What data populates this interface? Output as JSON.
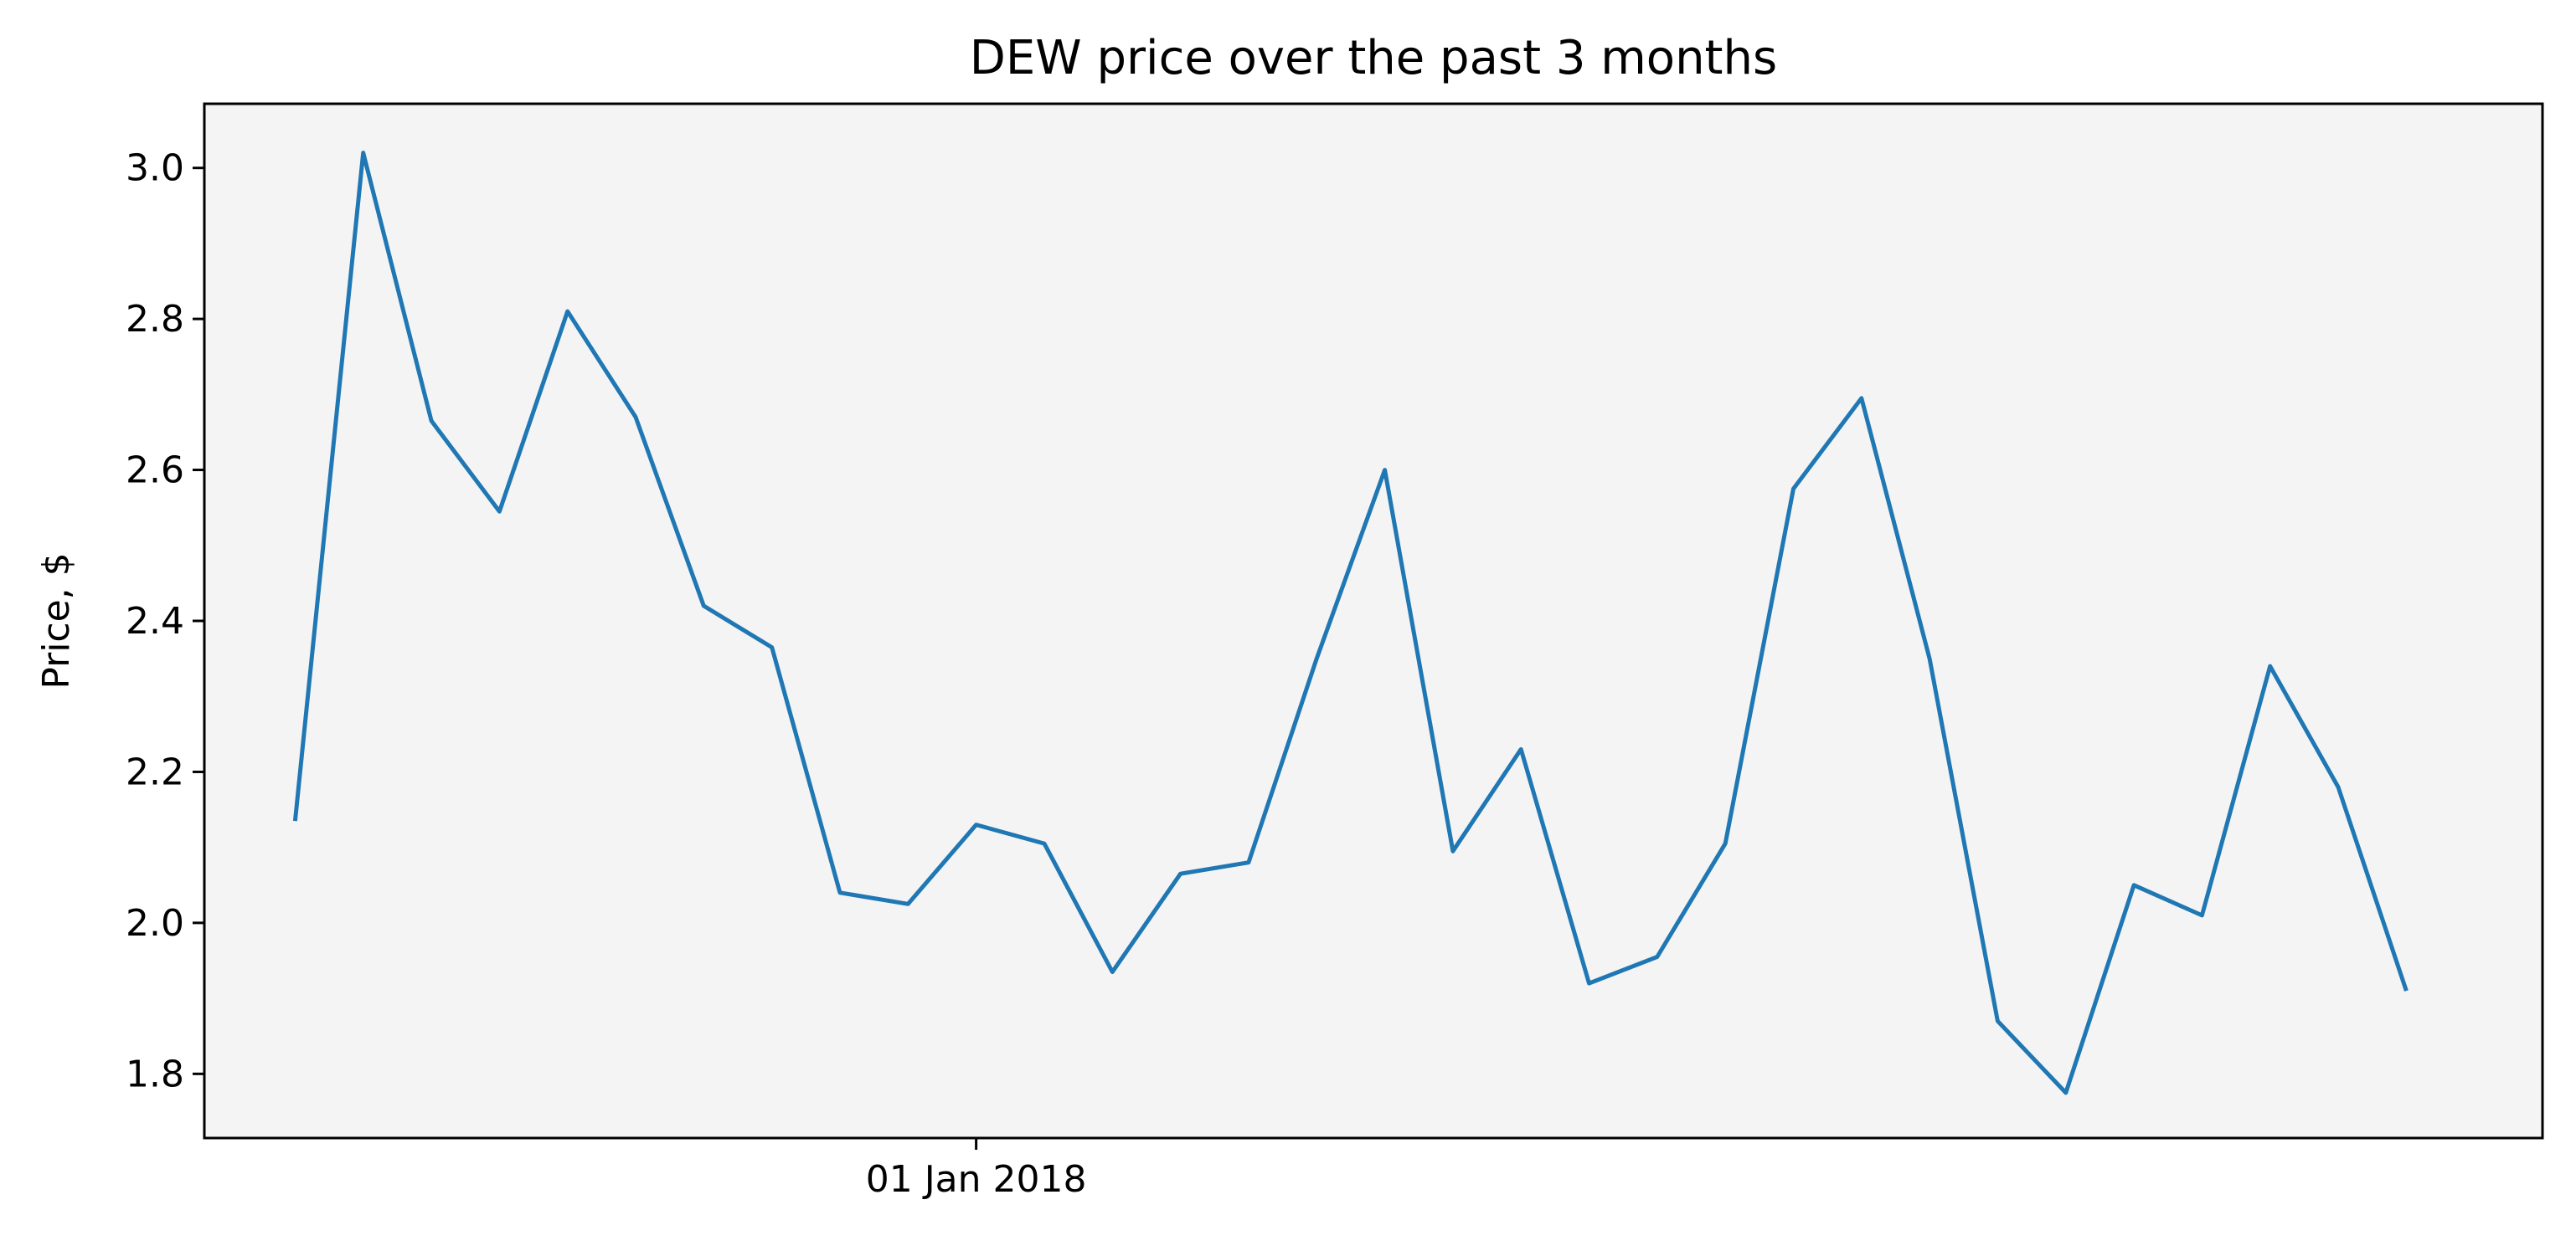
{
  "chart_data": {
    "type": "line",
    "title": "DEW price over the past 3 months",
    "xlabel": "",
    "ylabel": "Price, $",
    "x": [
      "2017-12-02",
      "2017-12-05",
      "2017-12-08",
      "2017-12-11",
      "2017-12-14",
      "2017-12-17",
      "2017-12-20",
      "2017-12-23",
      "2017-12-26",
      "2017-12-29",
      "2018-01-01",
      "2018-01-04",
      "2018-01-07",
      "2018-01-10",
      "2018-01-13",
      "2018-01-16",
      "2018-01-19",
      "2018-01-22",
      "2018-01-25",
      "2018-01-28",
      "2018-01-31",
      "2018-02-03",
      "2018-02-06",
      "2018-02-09",
      "2018-02-12",
      "2018-02-15",
      "2018-02-18",
      "2018-02-21",
      "2018-02-24",
      "2018-02-27",
      "2018-03-02",
      "2018-03-05"
    ],
    "series": [
      {
        "values": [
          2.135,
          3.02,
          2.665,
          2.545,
          2.81,
          2.67,
          2.42,
          2.365,
          2.04,
          2.025,
          2.13,
          2.105,
          1.935,
          2.065,
          2.08,
          2.35,
          2.6,
          2.095,
          2.23,
          1.92,
          1.955,
          2.105,
          2.575,
          2.695,
          2.35,
          1.87,
          1.775,
          2.05,
          2.01,
          2.34,
          2.18,
          1.91
        ],
        "color": "#1f77b4"
      }
    ],
    "xticks": [
      {
        "value": "2018-01-01",
        "label": "01 Jan 2018"
      }
    ],
    "yticks": [
      1.8,
      2.0,
      2.2,
      2.4,
      2.6,
      2.8,
      3.0
    ],
    "yticklabels": [
      "1.8",
      "2.0",
      "2.2",
      "2.4",
      "2.6",
      "2.8",
      "3.0"
    ],
    "xlim": [
      "2017-11-28",
      "2018-03-11"
    ],
    "ylim": [
      1.715,
      3.085
    ],
    "grid": false,
    "legend": "none",
    "plot_background": "#f4f4f4"
  }
}
